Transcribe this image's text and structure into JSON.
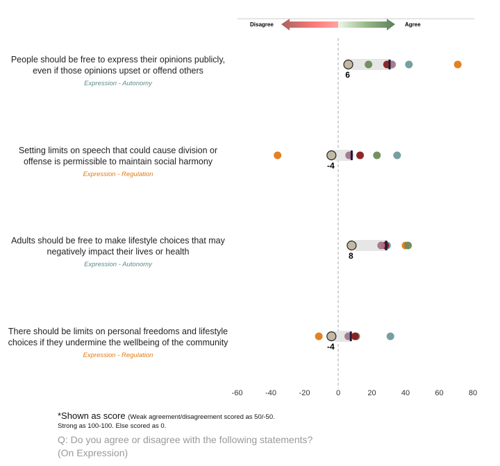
{
  "legend": {
    "disagree": "Disagree",
    "agree": "Agree"
  },
  "colors": {
    "overall": "#c2b8a3",
    "green": "#6e8b5a",
    "darkred": "#8b1a1f",
    "mauve": "#a47588",
    "teal": "#6f9a9b",
    "orange": "#e07b16",
    "autonomy": "#5e8a8a",
    "regulation": "#e07b16"
  },
  "chart_data": {
    "type": "scatter",
    "title": "Q: Do you agree or disagree with the following statements? (On Expression)",
    "xlim": [
      -60,
      80
    ],
    "xticks": [
      "-60",
      "-40",
      "-20",
      "0",
      "20",
      "40",
      "60",
      "80"
    ],
    "xtick_values": [
      -60,
      -40,
      -20,
      0,
      20,
      40,
      60,
      80
    ],
    "rows": [
      {
        "text1": "People should be free to express their opinions publicly,",
        "text2": "even if those opinions upset or offend others",
        "category": "Expression - Autonomy",
        "cat_type": "autonomy",
        "overall": 6,
        "overall_label": "6",
        "marker": 30.5,
        "points": {
          "green": 18,
          "darkred": 29,
          "mauve": 32,
          "teal": 42,
          "orange": 71
        }
      },
      {
        "text1": "Setting limits on speech that could cause division or",
        "text2": "offense is permissible to maintain social harmony",
        "category": "Expression - Regulation",
        "cat_type": "regulation",
        "overall": -4,
        "overall_label": "-4",
        "marker": 8,
        "points": {
          "orange": -36,
          "mauve": 6.5,
          "darkred": 13,
          "green": 23,
          "teal": 35
        }
      },
      {
        "text1": "Adults should be free to make lifestyle choices that may",
        "text2": "negatively impact their lives or health",
        "category": "Expression - Autonomy",
        "cat_type": "autonomy",
        "overall": 8,
        "overall_label": "8",
        "marker": 28.5,
        "points": {
          "mauve": 25.5,
          "teal": 29,
          "darkred": 28,
          "orange": 40,
          "green": 41.5
        }
      },
      {
        "text1": "There should be limits on personal freedoms and lifestyle",
        "text2": "choices if they undermine the wellbeing of the community",
        "category": "Expression - Regulation",
        "cat_type": "regulation",
        "overall": -4,
        "overall_label": "-4",
        "marker": 7.5,
        "points": {
          "orange": -11.5,
          "mauve": 6,
          "green": 10.7,
          "darkred": 10,
          "teal": 31
        }
      }
    ]
  },
  "footnote": {
    "main": "*Shown as score",
    "detail1": "(Weak agreement/disagreement scored as 50/-50.",
    "detail2": "Strong as 100-100. Else scored as 0."
  },
  "question": {
    "line1": "Q: Do you agree or disagree with the following statements?",
    "line2": "(On Expression)"
  }
}
